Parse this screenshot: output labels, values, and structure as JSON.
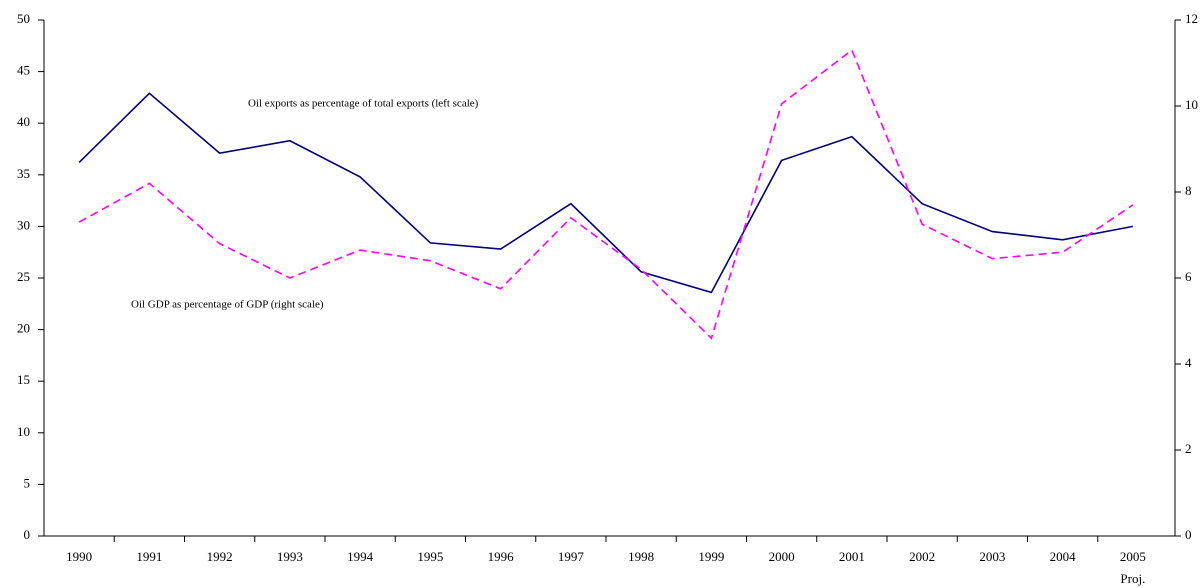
{
  "chart_data": {
    "type": "line",
    "categories": [
      "1990",
      "1991",
      "1992",
      "1993",
      "1994",
      "1995",
      "1996",
      "1997",
      "1998",
      "1999",
      "2000",
      "2001",
      "2002",
      "2003",
      "2004",
      "2005"
    ],
    "category_note": "Proj.",
    "series": [
      {
        "name": "Oil exports as percentage of total exports (left scale)",
        "color": "#000080",
        "dashed": false,
        "values": [
          36.2,
          42.9,
          37.1,
          38.3,
          34.8,
          28.4,
          27.8,
          32.2,
          25.6,
          23.6,
          36.4,
          38.7,
          32.2,
          29.5,
          28.7,
          30.0
        ]
      },
      {
        "name": "Oil GDP as percentage of GDP (right scale)",
        "color": "#ff00ff",
        "dashed": true,
        "axis": "y2",
        "values": [
          7.3,
          8.2,
          6.8,
          6.0,
          6.65,
          6.4,
          5.75,
          7.4,
          6.2,
          4.6,
          10.05,
          11.3,
          7.25,
          6.45,
          6.6,
          7.7
        ]
      }
    ],
    "ylim": [
      0,
      50
    ],
    "yticks": [
      0,
      5,
      10,
      15,
      20,
      25,
      30,
      35,
      40,
      45,
      50
    ],
    "y2lim": [
      0,
      12
    ],
    "y2ticks": [
      0,
      2,
      4,
      6,
      8,
      10,
      12
    ],
    "grid": false
  }
}
